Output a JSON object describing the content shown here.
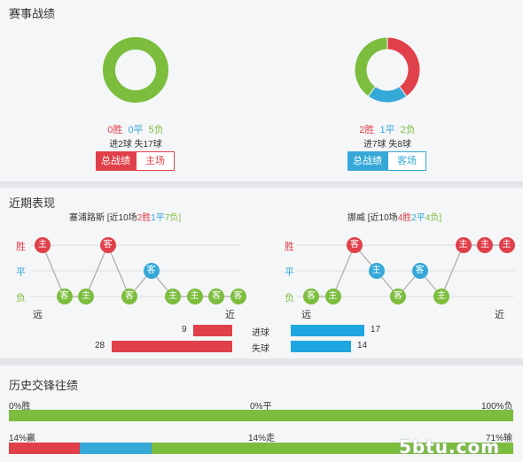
{
  "sections": {
    "record_title": "赛事战绩",
    "recent_title": "近期表现",
    "h2h_title": "历史交锋往绩"
  },
  "home": {
    "win": "0胜",
    "draw": "0平",
    "loss": "5负",
    "goals": "进2球 失17球",
    "tab_total": "总战绩",
    "tab_venue": "主场",
    "donut": {
      "win": 0,
      "draw": 0,
      "loss": 5
    },
    "recent_team": "塞浦路斯",
    "recent_prefix": "[近10场",
    "recent_win": "2胜",
    "recent_draw": "1平",
    "recent_loss": "7负]",
    "form": [
      {
        "r": "W",
        "v": "主"
      },
      {
        "r": "L",
        "v": "客"
      },
      {
        "r": "L",
        "v": "主"
      },
      {
        "r": "W",
        "v": "客"
      },
      {
        "r": "L",
        "v": "客"
      },
      {
        "r": "D",
        "v": "客"
      },
      {
        "r": "L",
        "v": "主"
      },
      {
        "r": "L",
        "v": "主"
      },
      {
        "r": "L",
        "v": "客"
      },
      {
        "r": "L",
        "v": "客"
      }
    ]
  },
  "away": {
    "win": "2胜",
    "draw": "1平",
    "loss": "2负",
    "goals": "进7球 失8球",
    "tab_total": "总战绩",
    "tab_venue": "客场",
    "donut": {
      "win": 2,
      "draw": 1,
      "loss": 2
    },
    "recent_team": "挪威",
    "recent_prefix": "[近10场",
    "recent_win": "4胜",
    "recent_draw": "2平",
    "recent_loss": "4负]",
    "form": [
      {
        "r": "L",
        "v": "客"
      },
      {
        "r": "L",
        "v": "主"
      },
      {
        "r": "W",
        "v": "客"
      },
      {
        "r": "D",
        "v": "主"
      },
      {
        "r": "L",
        "v": "客"
      },
      {
        "r": "D",
        "v": "客"
      },
      {
        "r": "L",
        "v": "主"
      },
      {
        "r": "W",
        "v": "主"
      },
      {
        "r": "W",
        "v": "主"
      },
      {
        "r": "W",
        "v": "主"
      }
    ]
  },
  "axis": {
    "win": "胜",
    "draw": "平",
    "loss": "负",
    "far": "远",
    "near": "近"
  },
  "compare": {
    "goals_label": "进球",
    "conceded_label": "失球",
    "home_goals": "9",
    "away_goals": "17",
    "home_conceded": "28",
    "away_conceded": "14",
    "home_goals_val": 9,
    "away_goals_val": 17,
    "home_conceded_val": 28,
    "away_conceded_val": 14
  },
  "h2h": {
    "row1_left": "0%胜",
    "row1_mid": "0%平",
    "row1_right": "100%负",
    "row2_left": "14%赢",
    "row2_mid": "14%走",
    "row2_right": "71%输",
    "row1": {
      "win": 0,
      "draw": 0,
      "loss": 100
    },
    "row2": {
      "win": 14,
      "draw": 14,
      "loss": 71
    }
  },
  "watermark": "5btu.com",
  "colors": {
    "win": "#e0404a",
    "draw": "#35a8d8",
    "loss": "#7cbd3e"
  }
}
